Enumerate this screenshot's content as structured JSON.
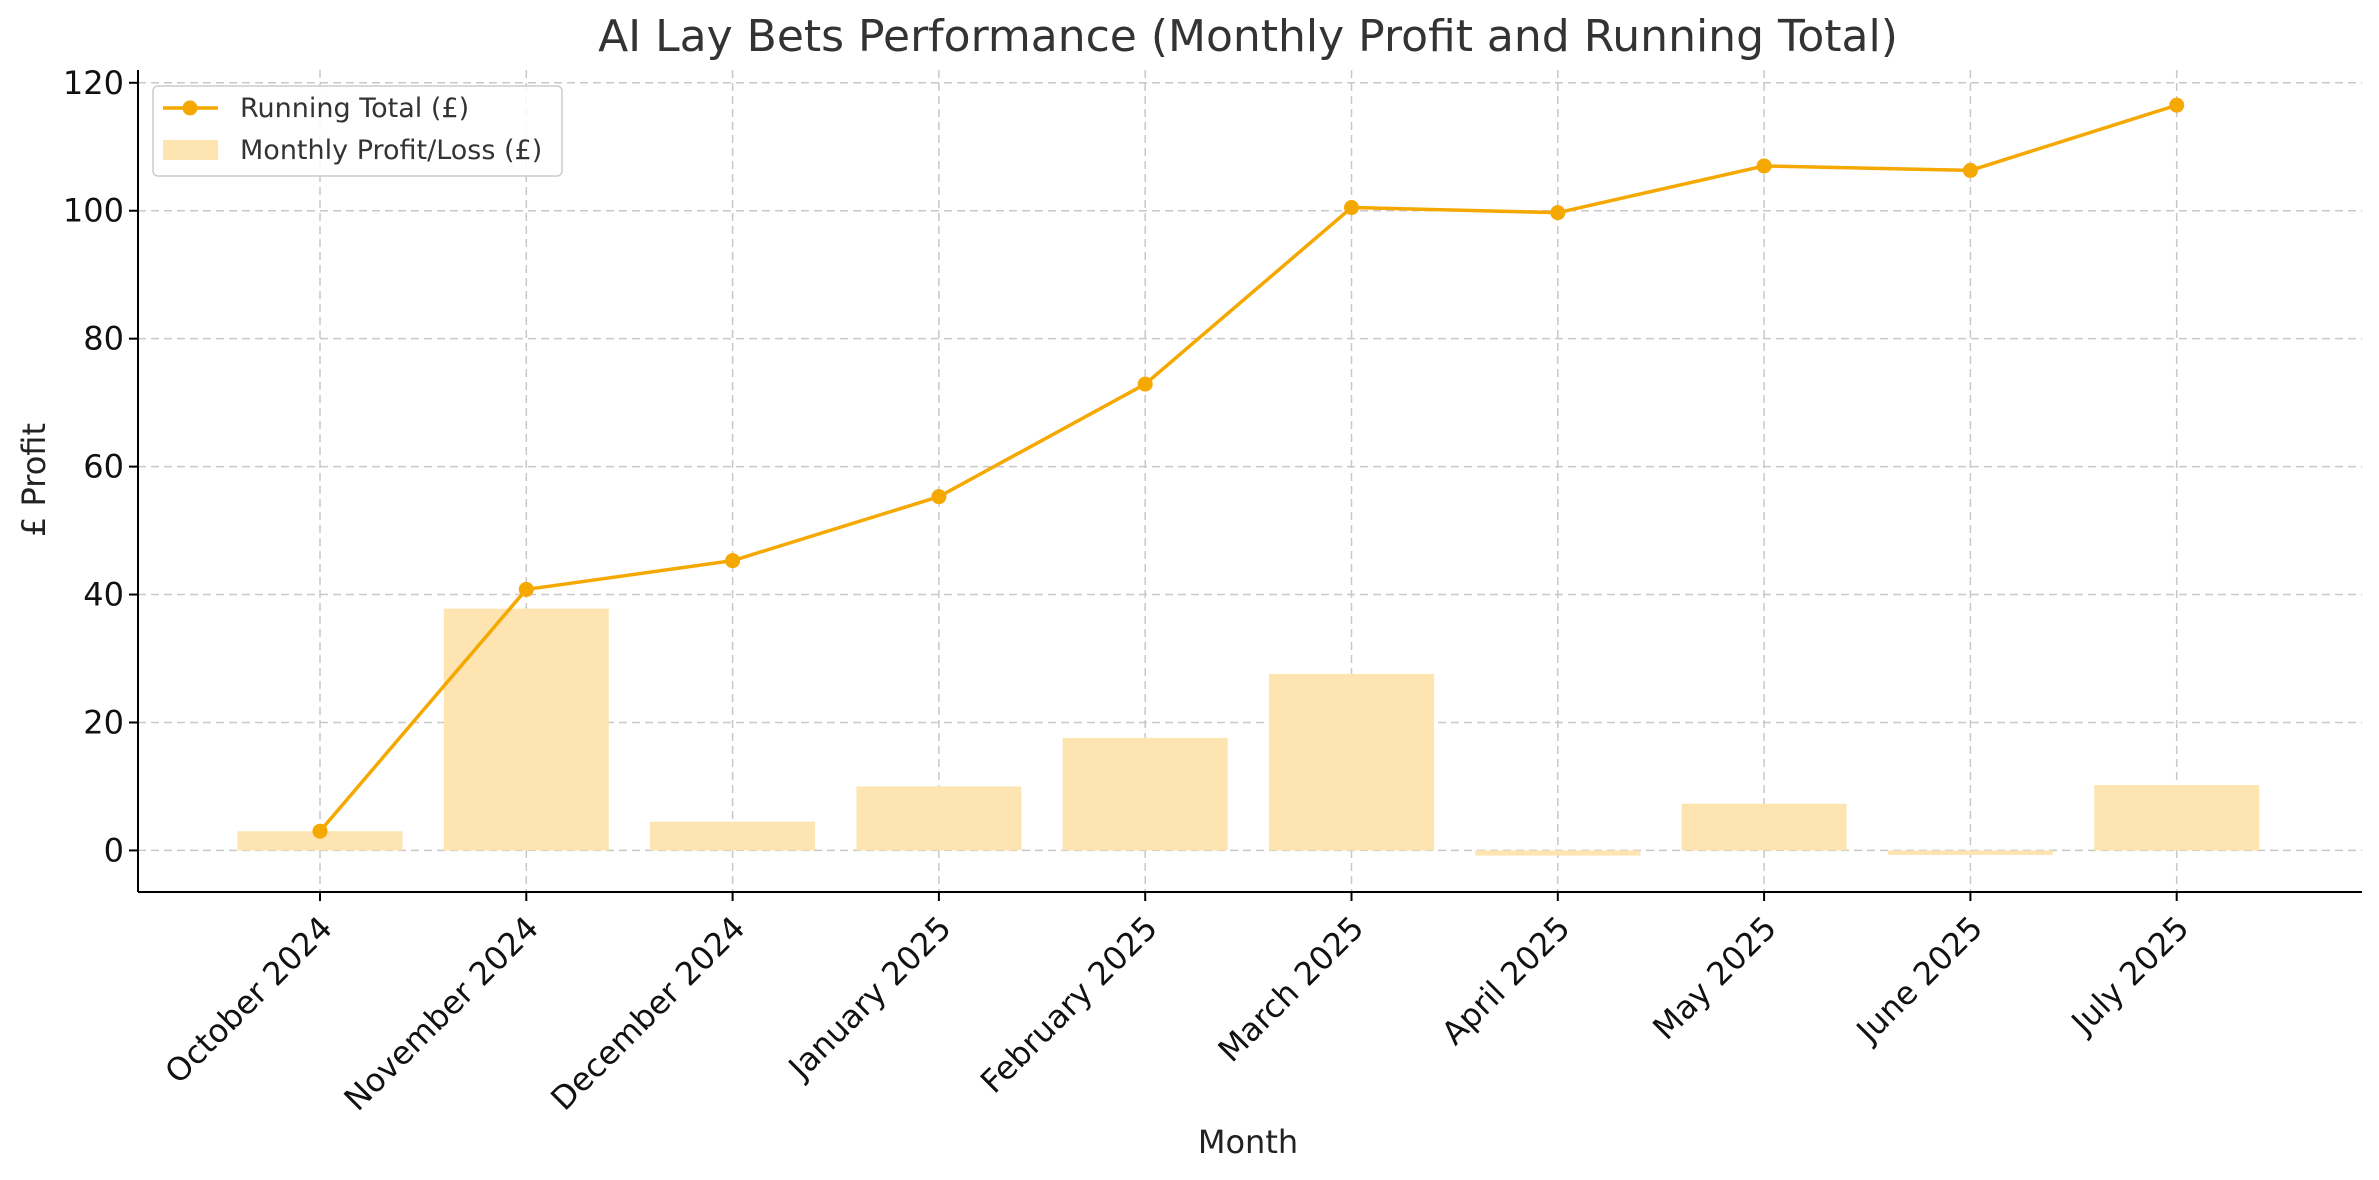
{
  "chart_data": {
    "type": "bar",
    "title": "AI Lay Bets Performance (Monthly Profit and Running Total)",
    "xlabel": "Month",
    "ylabel": "£ Profit",
    "categories": [
      "October 2024",
      "November 2024",
      "December 2024",
      "January 2025",
      "February 2025",
      "March 2025",
      "April 2025",
      "May 2025",
      "June 2025",
      "July 2025"
    ],
    "ylim": [
      -6.5,
      122
    ],
    "yticks": [
      0,
      20,
      40,
      60,
      80,
      100,
      120
    ],
    "grid": true,
    "legend_position": "top-left",
    "series": [
      {
        "name": "Running Total (£)",
        "type": "line",
        "color": "#f5a800",
        "values": [
          3.0,
          40.8,
          45.3,
          55.3,
          72.9,
          100.5,
          99.7,
          107.0,
          106.3,
          116.5
        ]
      },
      {
        "name": "Monthly Profit/Loss (£)",
        "type": "bar",
        "color": "#fde4b0",
        "values": [
          3.0,
          37.8,
          4.5,
          10.0,
          17.6,
          27.6,
          -0.8,
          7.3,
          -0.7,
          10.2
        ]
      }
    ]
  }
}
